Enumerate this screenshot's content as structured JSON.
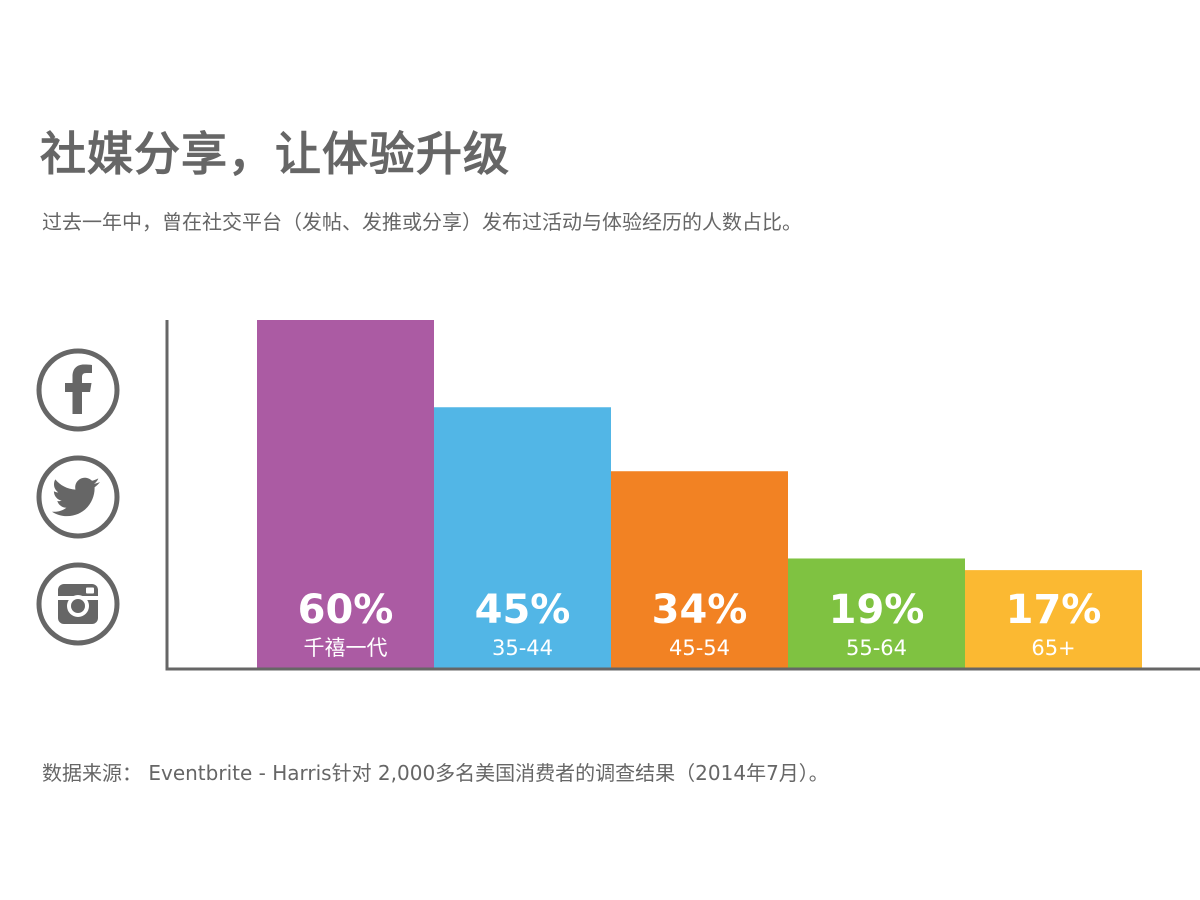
{
  "header": {
    "title": "社媒分享，让体验升级",
    "subtitle": "过去一年中，曾在社交平台（发帖、发推或分享）发布过活动与体验经历的人数占比。"
  },
  "footer": {
    "source": "数据来源： Eventbrite - Harris针对 2,000多名美国消费者的调查结果（2014年7月）。"
  },
  "icons": [
    "facebook-icon",
    "twitter-icon",
    "instagram-icon"
  ],
  "colors": {
    "text": "#666666",
    "axis": "#666666",
    "label": "#ffffff"
  },
  "chart_data": {
    "type": "bar",
    "categories": [
      "千禧一代",
      "35-44",
      "45-54",
      "55-64",
      "65+"
    ],
    "values": [
      60,
      45,
      34,
      19,
      17
    ],
    "value_labels": [
      "60%",
      "45%",
      "34%",
      "19%",
      "17%"
    ],
    "colors": [
      "#ab5ba3",
      "#52b6e6",
      "#f28223",
      "#7fc241",
      "#fbb932"
    ],
    "ylim": [
      0,
      60
    ],
    "grid": false,
    "legend": "none"
  }
}
